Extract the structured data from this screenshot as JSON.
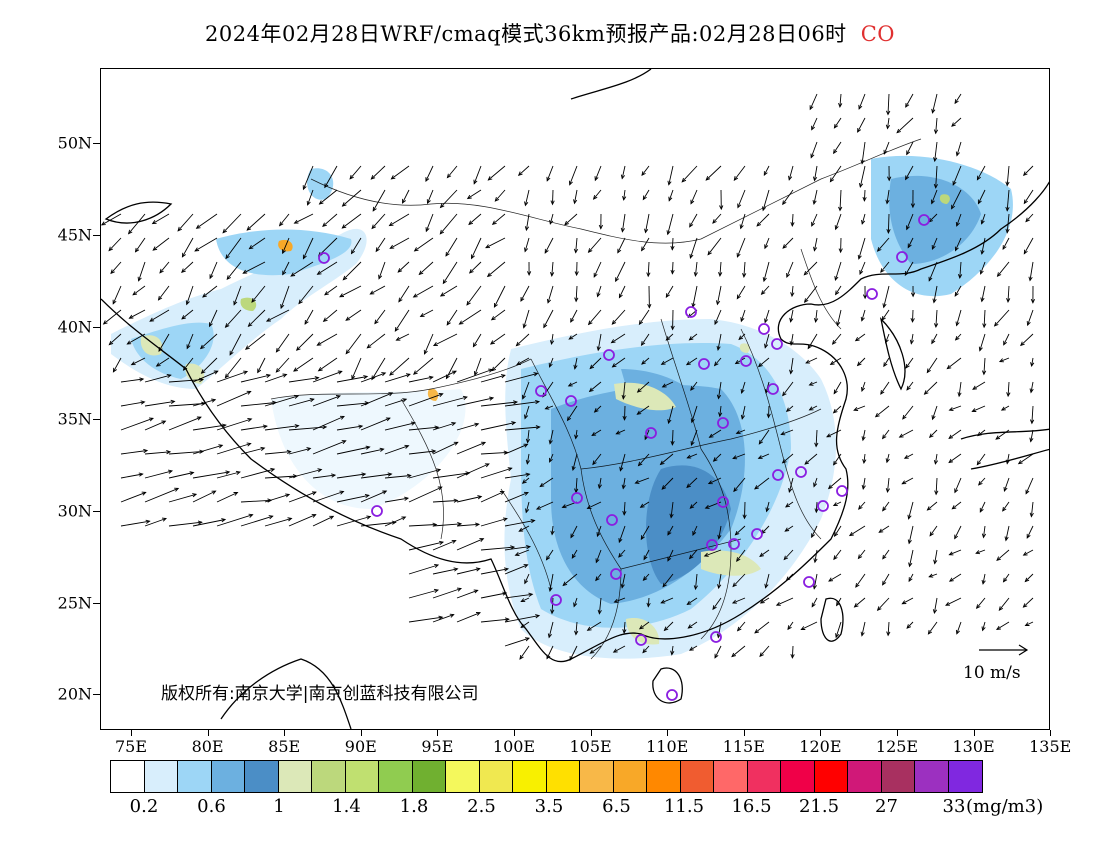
{
  "title": {
    "main": "2024年02月28日WRF/cmaq模式36km预报产品:02月28日06时",
    "species": "CO",
    "species_color": "#e03030"
  },
  "axes": {
    "lat_labels": [
      "50N",
      "45N",
      "40N",
      "35N",
      "30N",
      "25N",
      "20N"
    ],
    "lon_labels": [
      "75E",
      "80E",
      "85E",
      "90E",
      "95E",
      "100E",
      "105E",
      "110E",
      "115E",
      "120E",
      "125E",
      "130E",
      "135E"
    ]
  },
  "copyright": "版权所有:南京大学|南京创蓝科技有限公司",
  "wind_legend": {
    "label": "10 m/s"
  },
  "colorbar": {
    "colors": [
      "#ffffff",
      "#d8eefc",
      "#9dd6f6",
      "#6cb0e0",
      "#4b8ec6",
      "#dce8b8",
      "#bcd87c",
      "#c0e070",
      "#90cc50",
      "#70b030",
      "#f4f85c",
      "#f0e850",
      "#f8f000",
      "#ffe000",
      "#f8b848",
      "#f8a828",
      "#ff8800",
      "#f05c30",
      "#ff6868",
      "#f03060",
      "#f00048",
      "#ff0000",
      "#d01878",
      "#a83060",
      "#9c30c0",
      "#8028e0"
    ],
    "labels": [
      "0.2",
      "0.6",
      "1",
      "1.4",
      "1.8",
      "2.5",
      "3.5",
      "6.5",
      "11.5",
      "16.5",
      "21.5",
      "27",
      "33"
    ],
    "unit": "(mg/m3)"
  },
  "map_colors": {
    "light_blue": "#d8eefc",
    "mid_blue": "#9dd6f6",
    "blue": "#6cb0e0",
    "dark_blue": "#4b8ec6",
    "olive": "#dce8b8",
    "station_ring": "#8a1ee0"
  }
}
